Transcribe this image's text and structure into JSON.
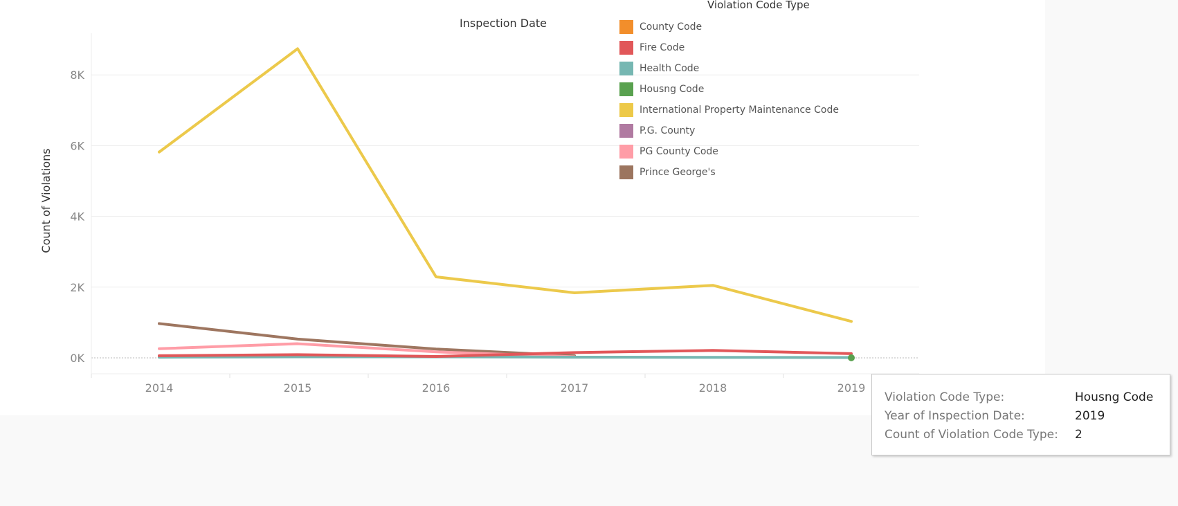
{
  "chart_data": {
    "type": "line",
    "title": "Inspection Date",
    "xlabel": "",
    "ylabel": "Count of Violations",
    "categories": [
      "2014",
      "2015",
      "2016",
      "2017",
      "2018",
      "2019"
    ],
    "yticks": [
      "0K",
      "2K",
      "4K",
      "6K",
      "8K"
    ],
    "ylim": [
      0,
      9000
    ],
    "grid": true,
    "legend_title": "Violation Code Type",
    "legend_position": "top-right",
    "series": [
      {
        "name": "International Property Maintenance Code",
        "color": "#ecc94b",
        "values": [
          5820,
          8740,
          2290,
          1840,
          2050,
          1030
        ]
      },
      {
        "name": "Prince George's",
        "color": "#9e7660",
        "values": [
          970,
          530,
          250,
          60,
          null,
          null
        ]
      },
      {
        "name": "PG County Code",
        "color": "#ff9da7",
        "values": [
          260,
          400,
          170,
          30,
          null,
          null
        ]
      },
      {
        "name": "Health Code",
        "color": "#76b7b2",
        "values": [
          20,
          30,
          30,
          20,
          15,
          10
        ]
      },
      {
        "name": "Fire Code",
        "color": "#e15759",
        "values": [
          60,
          90,
          40,
          150,
          210,
          120
        ]
      },
      {
        "name": "Housng Code",
        "color": "#59a14f",
        "values": [
          null,
          null,
          null,
          null,
          null,
          2
        ]
      }
    ],
    "legend": [
      {
        "name": "County Code",
        "color": "#f28e2b"
      },
      {
        "name": "Fire Code",
        "color": "#e15759"
      },
      {
        "name": "Health Code",
        "color": "#76b7b2"
      },
      {
        "name": "Housng Code",
        "color": "#59a14f"
      },
      {
        "name": "International Property Maintenance Code",
        "color": "#edc948"
      },
      {
        "name": "P.G. County",
        "color": "#b07aa1"
      },
      {
        "name": "PG County Code",
        "color": "#ff9da7"
      },
      {
        "name": "Prince George's",
        "color": "#9c755f"
      }
    ]
  },
  "tooltip": {
    "rows": [
      {
        "label": "Violation Code Type:",
        "value": "Housng Code"
      },
      {
        "label": "Year of Inspection Date:",
        "value": "2019"
      },
      {
        "label": "Count of Violation Code Type:",
        "value": "2"
      }
    ]
  }
}
